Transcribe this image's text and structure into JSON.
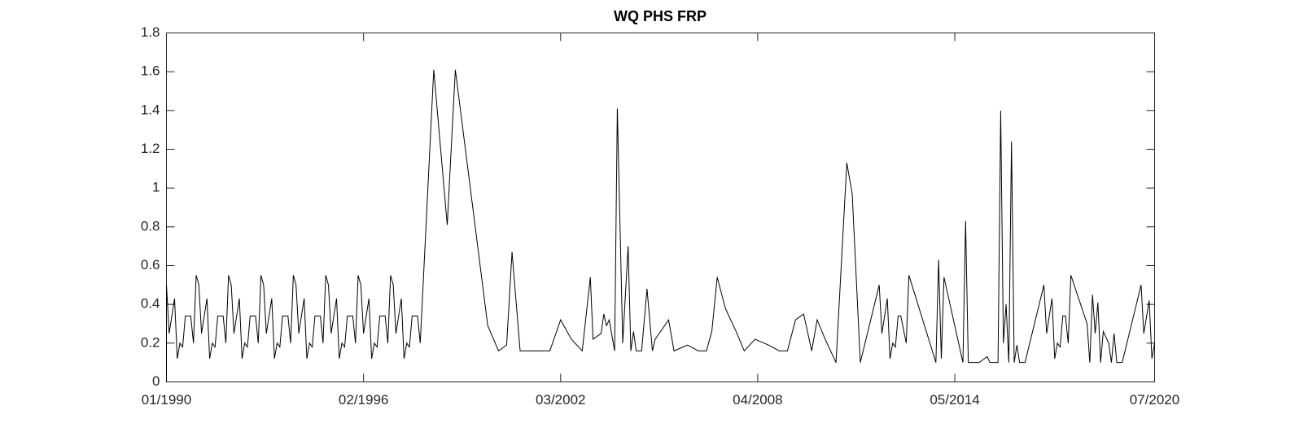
{
  "chart_data": {
    "type": "line",
    "title": "WQ PHS FRP",
    "color": "#000000",
    "x": [
      "1990-01",
      "1990-01",
      "1990-02",
      "1990-04",
      "1990-05",
      "1990-06",
      "1990-07",
      "1990-08",
      "1990-10",
      "1990-11",
      "1990-12",
      "1991-01",
      "1991-02",
      "1991-04",
      "1991-05",
      "1991-06",
      "1991-07",
      "1991-08",
      "1991-10",
      "1991-11",
      "1991-12",
      "1992-01",
      "1992-02",
      "1992-04",
      "1992-05",
      "1992-06",
      "1992-07",
      "1992-08",
      "1992-10",
      "1992-11",
      "1992-12",
      "1993-01",
      "1993-02",
      "1993-04",
      "1993-05",
      "1993-06",
      "1993-07",
      "1993-08",
      "1993-10",
      "1993-11",
      "1993-12",
      "1994-01",
      "1994-02",
      "1994-04",
      "1994-05",
      "1994-06",
      "1994-07",
      "1994-08",
      "1994-10",
      "1994-11",
      "1994-12",
      "1995-01",
      "1995-02",
      "1995-04",
      "1995-05",
      "1995-06",
      "1995-07",
      "1995-08",
      "1995-10",
      "1995-11",
      "1995-12",
      "1996-01",
      "1996-02",
      "1996-04",
      "1996-05",
      "1996-06",
      "1996-07",
      "1996-08",
      "1996-10",
      "1996-11",
      "1996-12",
      "1997-01",
      "1997-02",
      "1997-04",
      "1997-05",
      "1997-06",
      "1997-07",
      "1997-08",
      "1997-10",
      "1997-11",
      "1998-04",
      "1998-09",
      "1998-12",
      "1999-12",
      "2000-04",
      "2000-07",
      "2000-09",
      "2000-12",
      "2001-11",
      "2002-03",
      "2002-07",
      "2002-11",
      "2003-02",
      "2003-03",
      "2003-06",
      "2003-07",
      "2003-08",
      "2003-09",
      "2003-11",
      "2003-12",
      "2004-02",
      "2004-04",
      "2004-05",
      "2004-06",
      "2004-07",
      "2004-09",
      "2004-11",
      "2005-01",
      "2005-02",
      "2005-07",
      "2005-09",
      "2006-02",
      "2006-06",
      "2006-09",
      "2006-11",
      "2007-01",
      "2007-04",
      "2007-08",
      "2007-11",
      "2008-03",
      "2008-08",
      "2008-12",
      "2009-03",
      "2009-06",
      "2009-09",
      "2009-12",
      "2010-02",
      "2010-05",
      "2010-09",
      "2011-01",
      "2011-03",
      "2011-06",
      "2012-01",
      "2012-02",
      "2012-04",
      "2012-05",
      "2012-06",
      "2012-07",
      "2012-08",
      "2012-09",
      "2012-11",
      "2012-12",
      "2013-10",
      "2013-11",
      "2013-12",
      "2014-01",
      "2014-08",
      "2014-09",
      "2014-10",
      "2015-02",
      "2015-05",
      "2015-06",
      "2015-09",
      "2015-10",
      "2015-11",
      "2015-12",
      "2016-01",
      "2016-02",
      "2016-03",
      "2016-04",
      "2016-05",
      "2016-07",
      "2017-02",
      "2017-03",
      "2017-05",
      "2017-06",
      "2017-07",
      "2017-08",
      "2017-09",
      "2017-10",
      "2017-11",
      "2017-12",
      "2018-06",
      "2018-07",
      "2018-08",
      "2018-09",
      "2018-10",
      "2018-11",
      "2018-12",
      "2019-02",
      "2019-03",
      "2019-04",
      "2019-05",
      "2019-07",
      "2020-02",
      "2020-03",
      "2020-05",
      "2020-06",
      "2020-07"
    ],
    "values": [
      0,
      0.5,
      0.25,
      0.43,
      0.12,
      0.2,
      0.18,
      0.34,
      0.34,
      0.2,
      0.55,
      0.5,
      0.25,
      0.43,
      0.12,
      0.2,
      0.18,
      0.34,
      0.34,
      0.2,
      0.55,
      0.5,
      0.25,
      0.43,
      0.12,
      0.2,
      0.18,
      0.34,
      0.34,
      0.2,
      0.55,
      0.5,
      0.25,
      0.43,
      0.12,
      0.2,
      0.18,
      0.34,
      0.34,
      0.2,
      0.55,
      0.5,
      0.25,
      0.43,
      0.12,
      0.2,
      0.18,
      0.34,
      0.34,
      0.2,
      0.55,
      0.5,
      0.25,
      0.43,
      0.12,
      0.2,
      0.18,
      0.34,
      0.34,
      0.2,
      0.55,
      0.5,
      0.25,
      0.43,
      0.12,
      0.2,
      0.18,
      0.34,
      0.34,
      0.2,
      0.55,
      0.5,
      0.25,
      0.43,
      0.12,
      0.2,
      0.18,
      0.34,
      0.34,
      0.2,
      1.61,
      0.81,
      1.61,
      0.29,
      0.16,
      0.19,
      0.67,
      0.16,
      0.16,
      0.32,
      0.22,
      0.16,
      0.54,
      0.22,
      0.25,
      0.35,
      0.29,
      0.32,
      0.16,
      1.41,
      0.2,
      0.7,
      0.16,
      0.26,
      0.16,
      0.16,
      0.48,
      0.16,
      0.22,
      0.32,
      0.16,
      0.19,
      0.16,
      0.16,
      0.26,
      0.54,
      0.38,
      0.26,
      0.16,
      0.22,
      0.19,
      0.16,
      0.16,
      0.32,
      0.35,
      0.16,
      0.32,
      0.22,
      0.1,
      1.13,
      0.97,
      0.1,
      0.5,
      0.25,
      0.43,
      0.12,
      0.2,
      0.18,
      0.34,
      0.34,
      0.2,
      0.55,
      0.1,
      0.63,
      0.12,
      0.54,
      0.1,
      0.83,
      0.1,
      0.1,
      0.13,
      0.1,
      0.1,
      1.4,
      0.2,
      0.4,
      0.1,
      1.24,
      0.1,
      0.19,
      0.1,
      0.1,
      0.5,
      0.25,
      0.43,
      0.12,
      0.2,
      0.18,
      0.34,
      0.34,
      0.2,
      0.55,
      0.3,
      0.1,
      0.45,
      0.25,
      0.41,
      0.1,
      0.26,
      0.2,
      0.1,
      0.25,
      0.1,
      0.1,
      0.5,
      0.25,
      0.42,
      0.12,
      0.2
    ],
    "xlim": [
      "1990-01",
      "2020-07"
    ],
    "xticks": [
      {
        "value": "1990-01",
        "label": "01/1990"
      },
      {
        "value": "1996-02",
        "label": "02/1996"
      },
      {
        "value": "2002-03",
        "label": "03/2002"
      },
      {
        "value": "2008-04",
        "label": "04/2008"
      },
      {
        "value": "2014-05",
        "label": "05/2014"
      },
      {
        "value": "2020-07",
        "label": "07/2020"
      }
    ],
    "ylim": [
      0,
      1.8
    ],
    "yticks": [
      0,
      0.2,
      0.4,
      0.6,
      0.8,
      1,
      1.2,
      1.4,
      1.6,
      1.8
    ],
    "grid": false
  }
}
